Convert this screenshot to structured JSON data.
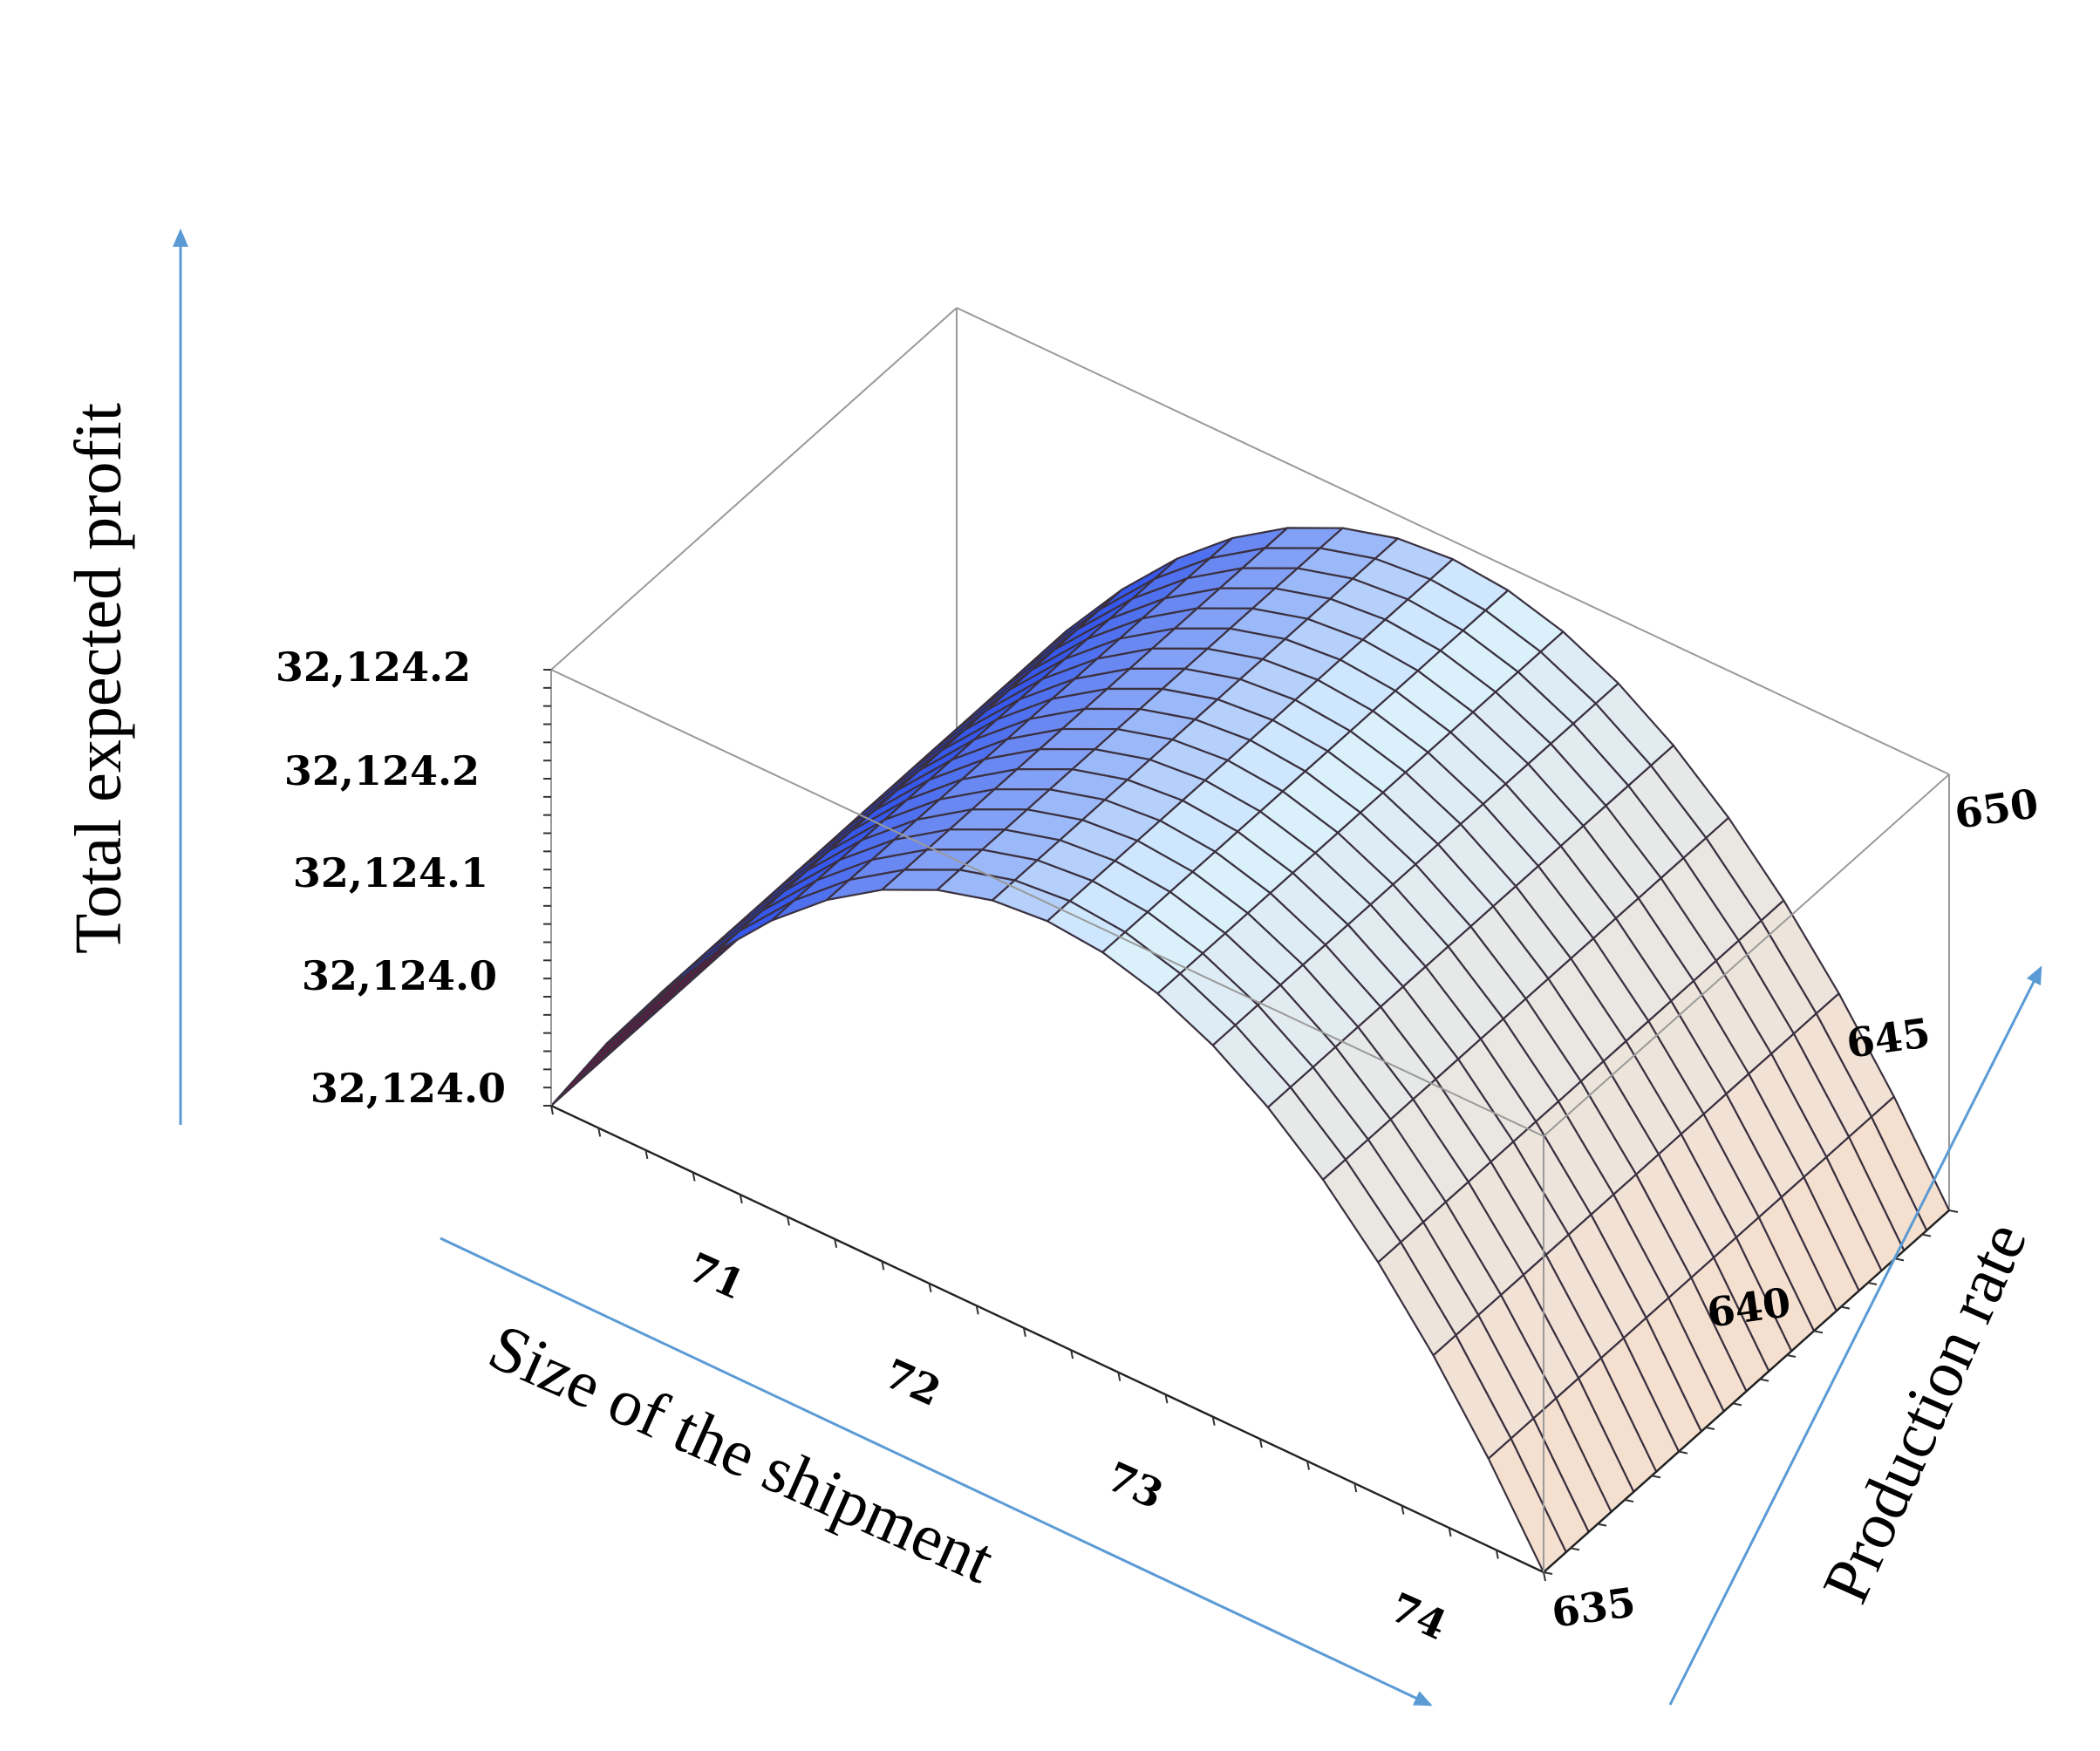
{
  "chart_data": {
    "type": "surface",
    "title": "",
    "xlabel": "Size of the shipment",
    "ylabel": "Production rate",
    "zlabel": "Total expected profit",
    "xlim": [
      70.2,
      74.4
    ],
    "ylim": [
      635,
      650
    ],
    "zlim": [
      32123.98,
      32124.22
    ],
    "x_ticks": [
      "71",
      "72",
      "73",
      "74"
    ],
    "y_ticks": [
      "635",
      "640",
      "645",
      "650"
    ],
    "z_ticks": [
      "32,124.0",
      "32,124.0",
      "32,124.1",
      "32,124.2",
      "32,124.2"
    ],
    "surface": {
      "x_range": [
        70.2,
        74.4
      ],
      "y_range": [
        635,
        650
      ],
      "grid": [
        18,
        18
      ],
      "peak_x": 72.3,
      "peak_z": 32124.21,
      "edge_z": 32123.98
    },
    "colors": {
      "low": "#7a0f0f",
      "mid_low": "#1438e8",
      "mid": "#d8f1ff",
      "high": "#f7dfcc",
      "axis_arrow": "#5b9bd5",
      "box": "#9a9a9a"
    },
    "grid": false
  }
}
